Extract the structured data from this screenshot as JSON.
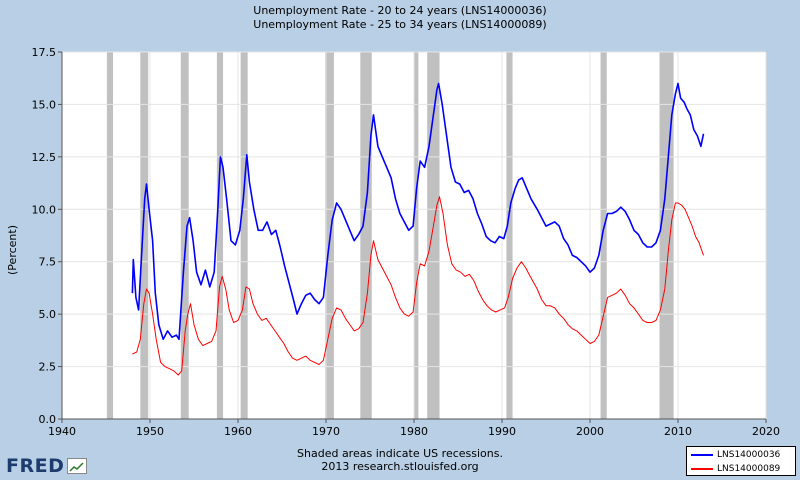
{
  "titles": [
    "Unemployment Rate - 20 to 24 years (LNS14000036)",
    "Unemployment Rate - 25 to 34 years (LNS14000089)"
  ],
  "footer": {
    "line1": "Shaded areas indicate US recessions.",
    "line2": "2013 research.stlouisfed.org"
  },
  "logo": {
    "text": "FRED",
    "badge_icon": "chart-line-icon"
  },
  "colors": {
    "series_a": "#0000ff",
    "series_b": "#ff0000",
    "recession": "#c0c0c0",
    "plot_bg": "#ffffff",
    "page_bg": "#b8cfe5"
  },
  "chart_data": {
    "type": "line",
    "ylabel": "(Percent)",
    "xlim": [
      1940,
      2020
    ],
    "ylim": [
      0,
      17.5
    ],
    "xticks": [
      1940,
      1950,
      1960,
      1970,
      1980,
      1990,
      2000,
      2010,
      2020
    ],
    "yticks": [
      0.0,
      2.5,
      5.0,
      7.5,
      10.0,
      12.5,
      15.0,
      17.5
    ],
    "ytick_labels": [
      "0.0",
      "2.5",
      "5.0",
      "7.5",
      "10.0",
      "12.5",
      "15.0",
      "17.5"
    ],
    "grid": true,
    "legend_position": "bottom-right",
    "recessions": [
      [
        1945.1,
        1945.8
      ],
      [
        1948.9,
        1949.8
      ],
      [
        1953.5,
        1954.4
      ],
      [
        1957.6,
        1958.3
      ],
      [
        1960.3,
        1961.1
      ],
      [
        1969.9,
        1970.9
      ],
      [
        1973.9,
        1975.2
      ],
      [
        1980.0,
        1980.5
      ],
      [
        1981.5,
        1982.9
      ],
      [
        1990.5,
        1991.2
      ],
      [
        2001.2,
        2001.9
      ],
      [
        2007.9,
        2009.5
      ]
    ],
    "series": [
      {
        "name": "LNS14000036",
        "color": "#0000ff",
        "points": [
          [
            1948.0,
            6.0
          ],
          [
            1948.1,
            7.6
          ],
          [
            1948.4,
            5.8
          ],
          [
            1948.7,
            5.2
          ],
          [
            1949.0,
            7.5
          ],
          [
            1949.4,
            10.5
          ],
          [
            1949.6,
            11.2
          ],
          [
            1949.9,
            10.0
          ],
          [
            1950.3,
            8.5
          ],
          [
            1950.6,
            6.0
          ],
          [
            1951.0,
            4.5
          ],
          [
            1951.5,
            3.8
          ],
          [
            1952.0,
            4.2
          ],
          [
            1952.5,
            3.9
          ],
          [
            1953.0,
            4.0
          ],
          [
            1953.3,
            3.8
          ],
          [
            1953.8,
            7.0
          ],
          [
            1954.2,
            9.2
          ],
          [
            1954.5,
            9.6
          ],
          [
            1954.9,
            8.5
          ],
          [
            1955.3,
            7.0
          ],
          [
            1955.8,
            6.4
          ],
          [
            1956.3,
            7.1
          ],
          [
            1956.8,
            6.3
          ],
          [
            1957.3,
            7.0
          ],
          [
            1957.7,
            10.0
          ],
          [
            1958.0,
            12.5
          ],
          [
            1958.3,
            12.0
          ],
          [
            1958.7,
            10.5
          ],
          [
            1959.2,
            8.5
          ],
          [
            1959.7,
            8.3
          ],
          [
            1960.2,
            9.0
          ],
          [
            1960.6,
            10.5
          ],
          [
            1961.0,
            12.6
          ],
          [
            1961.3,
            11.3
          ],
          [
            1961.8,
            10.0
          ],
          [
            1962.3,
            9.0
          ],
          [
            1962.8,
            9.0
          ],
          [
            1963.3,
            9.4
          ],
          [
            1963.8,
            8.8
          ],
          [
            1964.3,
            9.0
          ],
          [
            1964.8,
            8.2
          ],
          [
            1965.3,
            7.3
          ],
          [
            1965.8,
            6.5
          ],
          [
            1966.3,
            5.7
          ],
          [
            1966.7,
            5.0
          ],
          [
            1967.2,
            5.5
          ],
          [
            1967.7,
            5.9
          ],
          [
            1968.2,
            6.0
          ],
          [
            1968.7,
            5.7
          ],
          [
            1969.2,
            5.5
          ],
          [
            1969.7,
            5.8
          ],
          [
            1970.2,
            7.8
          ],
          [
            1970.7,
            9.5
          ],
          [
            1971.2,
            10.3
          ],
          [
            1971.7,
            10.0
          ],
          [
            1972.2,
            9.5
          ],
          [
            1972.7,
            9.0
          ],
          [
            1973.2,
            8.5
          ],
          [
            1973.7,
            8.8
          ],
          [
            1974.2,
            9.2
          ],
          [
            1974.7,
            10.8
          ],
          [
            1975.1,
            13.5
          ],
          [
            1975.4,
            14.5
          ],
          [
            1975.9,
            13.0
          ],
          [
            1976.4,
            12.5
          ],
          [
            1976.9,
            12.0
          ],
          [
            1977.4,
            11.5
          ],
          [
            1977.9,
            10.5
          ],
          [
            1978.4,
            9.8
          ],
          [
            1978.9,
            9.4
          ],
          [
            1979.4,
            9.0
          ],
          [
            1979.9,
            9.2
          ],
          [
            1980.3,
            11.0
          ],
          [
            1980.7,
            12.3
          ],
          [
            1981.2,
            12.0
          ],
          [
            1981.7,
            13.0
          ],
          [
            1982.2,
            14.5
          ],
          [
            1982.6,
            15.7
          ],
          [
            1982.8,
            16.0
          ],
          [
            1983.2,
            15.0
          ],
          [
            1983.7,
            13.5
          ],
          [
            1984.2,
            12.0
          ],
          [
            1984.7,
            11.3
          ],
          [
            1985.2,
            11.2
          ],
          [
            1985.7,
            10.8
          ],
          [
            1986.2,
            10.9
          ],
          [
            1986.7,
            10.5
          ],
          [
            1987.2,
            9.8
          ],
          [
            1987.7,
            9.3
          ],
          [
            1988.2,
            8.7
          ],
          [
            1988.7,
            8.5
          ],
          [
            1989.2,
            8.4
          ],
          [
            1989.7,
            8.7
          ],
          [
            1990.2,
            8.6
          ],
          [
            1990.6,
            9.2
          ],
          [
            1991.0,
            10.3
          ],
          [
            1991.5,
            11.0
          ],
          [
            1991.9,
            11.4
          ],
          [
            1992.3,
            11.5
          ],
          [
            1992.8,
            11.0
          ],
          [
            1993.3,
            10.5
          ],
          [
            1994.0,
            10.0
          ],
          [
            1994.5,
            9.6
          ],
          [
            1995.0,
            9.2
          ],
          [
            1995.5,
            9.3
          ],
          [
            1996.0,
            9.4
          ],
          [
            1996.5,
            9.2
          ],
          [
            1997.0,
            8.6
          ],
          [
            1997.5,
            8.3
          ],
          [
            1998.0,
            7.8
          ],
          [
            1998.5,
            7.7
          ],
          [
            1999.0,
            7.5
          ],
          [
            1999.5,
            7.3
          ],
          [
            2000.0,
            7.0
          ],
          [
            2000.5,
            7.2
          ],
          [
            2001.0,
            7.8
          ],
          [
            2001.5,
            9.0
          ],
          [
            2002.0,
            9.8
          ],
          [
            2002.5,
            9.8
          ],
          [
            2003.0,
            9.9
          ],
          [
            2003.5,
            10.1
          ],
          [
            2004.0,
            9.9
          ],
          [
            2004.5,
            9.5
          ],
          [
            2005.0,
            9.0
          ],
          [
            2005.5,
            8.8
          ],
          [
            2006.0,
            8.4
          ],
          [
            2006.5,
            8.2
          ],
          [
            2007.0,
            8.2
          ],
          [
            2007.5,
            8.4
          ],
          [
            2008.0,
            9.0
          ],
          [
            2008.5,
            10.5
          ],
          [
            2008.9,
            12.5
          ],
          [
            2009.3,
            14.5
          ],
          [
            2009.7,
            15.5
          ],
          [
            2010.0,
            16.0
          ],
          [
            2010.3,
            15.3
          ],
          [
            2010.7,
            15.1
          ],
          [
            2011.0,
            14.8
          ],
          [
            2011.4,
            14.5
          ],
          [
            2011.8,
            13.8
          ],
          [
            2012.2,
            13.5
          ],
          [
            2012.6,
            13.0
          ],
          [
            2012.9,
            13.6
          ]
        ]
      },
      {
        "name": "LNS14000089",
        "color": "#ff0000",
        "points": [
          [
            1948.0,
            3.1
          ],
          [
            1948.5,
            3.2
          ],
          [
            1948.9,
            3.8
          ],
          [
            1949.3,
            5.5
          ],
          [
            1949.6,
            6.2
          ],
          [
            1949.9,
            6.0
          ],
          [
            1950.3,
            5.0
          ],
          [
            1950.7,
            3.8
          ],
          [
            1951.2,
            2.7
          ],
          [
            1951.7,
            2.5
          ],
          [
            1952.2,
            2.4
          ],
          [
            1952.7,
            2.3
          ],
          [
            1953.2,
            2.1
          ],
          [
            1953.6,
            2.3
          ],
          [
            1954.0,
            4.2
          ],
          [
            1954.3,
            5.0
          ],
          [
            1954.6,
            5.5
          ],
          [
            1955.0,
            4.5
          ],
          [
            1955.5,
            3.8
          ],
          [
            1956.0,
            3.5
          ],
          [
            1956.5,
            3.6
          ],
          [
            1957.0,
            3.7
          ],
          [
            1957.5,
            4.2
          ],
          [
            1957.9,
            6.3
          ],
          [
            1958.2,
            6.8
          ],
          [
            1958.6,
            6.2
          ],
          [
            1959.0,
            5.2
          ],
          [
            1959.5,
            4.6
          ],
          [
            1960.0,
            4.7
          ],
          [
            1960.5,
            5.2
          ],
          [
            1960.9,
            6.3
          ],
          [
            1961.3,
            6.2
          ],
          [
            1961.7,
            5.5
          ],
          [
            1962.2,
            5.0
          ],
          [
            1962.7,
            4.7
          ],
          [
            1963.2,
            4.8
          ],
          [
            1963.7,
            4.5
          ],
          [
            1964.2,
            4.2
          ],
          [
            1964.7,
            3.9
          ],
          [
            1965.2,
            3.6
          ],
          [
            1965.7,
            3.2
          ],
          [
            1966.2,
            2.9
          ],
          [
            1966.7,
            2.8
          ],
          [
            1967.2,
            2.9
          ],
          [
            1967.7,
            3.0
          ],
          [
            1968.2,
            2.8
          ],
          [
            1968.7,
            2.7
          ],
          [
            1969.2,
            2.6
          ],
          [
            1969.7,
            2.8
          ],
          [
            1970.2,
            3.8
          ],
          [
            1970.7,
            4.8
          ],
          [
            1971.2,
            5.3
          ],
          [
            1971.7,
            5.2
          ],
          [
            1972.2,
            4.8
          ],
          [
            1972.7,
            4.5
          ],
          [
            1973.2,
            4.2
          ],
          [
            1973.7,
            4.3
          ],
          [
            1974.2,
            4.6
          ],
          [
            1974.7,
            6.0
          ],
          [
            1975.1,
            7.8
          ],
          [
            1975.4,
            8.5
          ],
          [
            1975.9,
            7.6
          ],
          [
            1976.4,
            7.2
          ],
          [
            1976.9,
            6.8
          ],
          [
            1977.4,
            6.4
          ],
          [
            1977.9,
            5.8
          ],
          [
            1978.4,
            5.3
          ],
          [
            1978.9,
            5.0
          ],
          [
            1979.4,
            4.9
          ],
          [
            1979.9,
            5.1
          ],
          [
            1980.3,
            6.5
          ],
          [
            1980.7,
            7.4
          ],
          [
            1981.2,
            7.3
          ],
          [
            1981.7,
            8.0
          ],
          [
            1982.2,
            9.2
          ],
          [
            1982.6,
            10.2
          ],
          [
            1982.9,
            10.6
          ],
          [
            1983.3,
            9.8
          ],
          [
            1983.8,
            8.3
          ],
          [
            1984.3,
            7.4
          ],
          [
            1984.8,
            7.1
          ],
          [
            1985.3,
            7.0
          ],
          [
            1985.8,
            6.8
          ],
          [
            1986.3,
            6.9
          ],
          [
            1986.8,
            6.6
          ],
          [
            1987.3,
            6.1
          ],
          [
            1987.8,
            5.7
          ],
          [
            1988.3,
            5.4
          ],
          [
            1988.8,
            5.2
          ],
          [
            1989.3,
            5.1
          ],
          [
            1989.8,
            5.2
          ],
          [
            1990.3,
            5.3
          ],
          [
            1990.7,
            5.8
          ],
          [
            1991.2,
            6.7
          ],
          [
            1991.7,
            7.2
          ],
          [
            1992.2,
            7.5
          ],
          [
            1992.7,
            7.2
          ],
          [
            1993.2,
            6.8
          ],
          [
            1994.0,
            6.2
          ],
          [
            1994.5,
            5.7
          ],
          [
            1995.0,
            5.4
          ],
          [
            1995.5,
            5.4
          ],
          [
            1996.0,
            5.3
          ],
          [
            1996.5,
            5.0
          ],
          [
            1997.0,
            4.8
          ],
          [
            1997.5,
            4.5
          ],
          [
            1998.0,
            4.3
          ],
          [
            1998.5,
            4.2
          ],
          [
            1999.0,
            4.0
          ],
          [
            1999.5,
            3.8
          ],
          [
            2000.0,
            3.6
          ],
          [
            2000.5,
            3.7
          ],
          [
            2001.0,
            4.0
          ],
          [
            2001.5,
            4.9
          ],
          [
            2002.0,
            5.8
          ],
          [
            2002.5,
            5.9
          ],
          [
            2003.0,
            6.0
          ],
          [
            2003.5,
            6.2
          ],
          [
            2004.0,
            5.9
          ],
          [
            2004.5,
            5.5
          ],
          [
            2005.0,
            5.3
          ],
          [
            2005.5,
            5.0
          ],
          [
            2006.0,
            4.7
          ],
          [
            2006.5,
            4.6
          ],
          [
            2007.0,
            4.6
          ],
          [
            2007.5,
            4.7
          ],
          [
            2008.0,
            5.2
          ],
          [
            2008.5,
            6.2
          ],
          [
            2008.9,
            8.0
          ],
          [
            2009.3,
            9.5
          ],
          [
            2009.7,
            10.3
          ],
          [
            2010.0,
            10.3
          ],
          [
            2010.4,
            10.2
          ],
          [
            2010.8,
            10.0
          ],
          [
            2011.2,
            9.6
          ],
          [
            2011.6,
            9.2
          ],
          [
            2012.0,
            8.7
          ],
          [
            2012.4,
            8.4
          ],
          [
            2012.9,
            7.8
          ]
        ]
      }
    ]
  }
}
